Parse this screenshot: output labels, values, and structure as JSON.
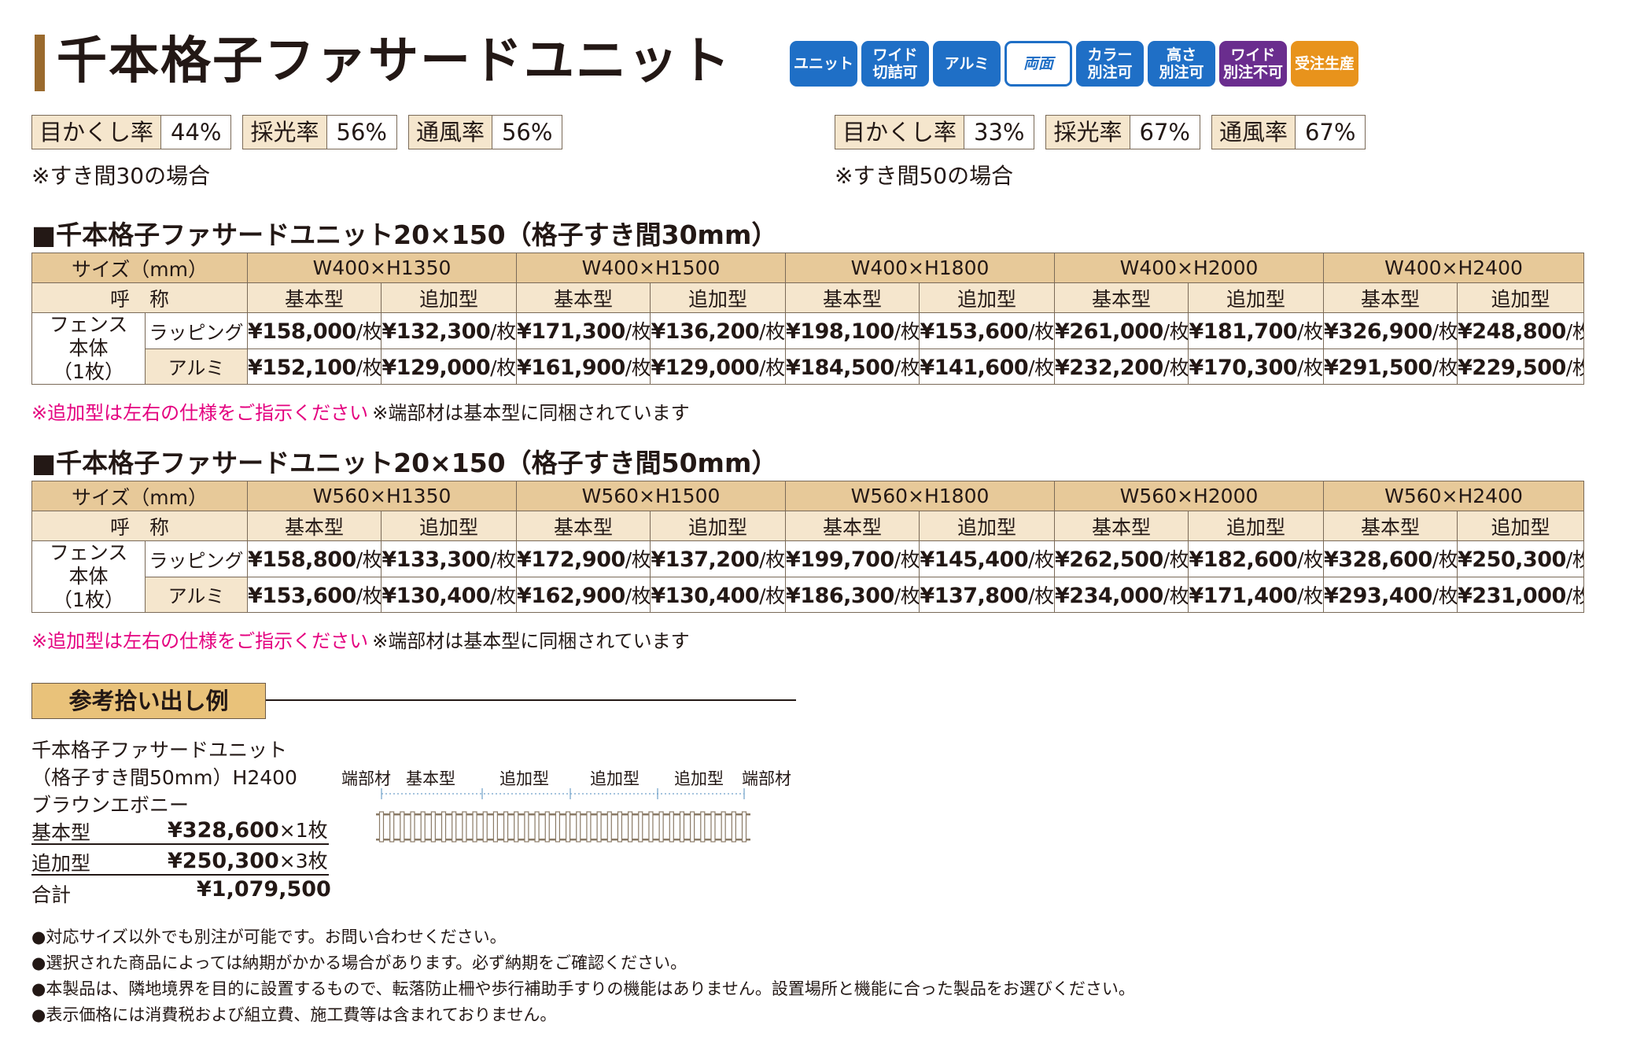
{
  "title": "千本格子ファサードユニット",
  "badges": [
    {
      "label": "ユニット",
      "color": "#1f6fc6"
    },
    {
      "label": "ワイド\n切詰可",
      "color": "#1f6fc6"
    },
    {
      "label": "アルミ",
      "color": "#1f6fc6"
    },
    {
      "label": "両面",
      "color": "#1f6fc6"
    },
    {
      "label": "カラー\n別注可",
      "color": "#1f6fc6"
    },
    {
      "label": "高さ\n別注可",
      "color": "#1f6fc6"
    },
    {
      "label": "ワイド\n別注不可",
      "color": "#6a2d8e"
    },
    {
      "label": "受注生産",
      "color": "#e8931c"
    }
  ],
  "ratios_30": {
    "items": [
      {
        "label": "目かくし率",
        "value": "44%"
      },
      {
        "label": "採光率",
        "value": "56%"
      },
      {
        "label": "通風率",
        "value": "56%"
      }
    ],
    "note": "※すき間30の場合"
  },
  "ratios_50": {
    "items": [
      {
        "label": "目かくし率",
        "value": "33%"
      },
      {
        "label": "採光率",
        "value": "67%"
      },
      {
        "label": "通風率",
        "value": "67%"
      }
    ],
    "note": "※すき間50の場合"
  },
  "tables": [
    {
      "heading": "■千本格子ファサードユニット20×150（格子すき間30mm）",
      "size_label": "サイズ（mm）",
      "name_label": "呼　称",
      "sizes": [
        "W400×H1350",
        "W400×H1500",
        "W400×H1800",
        "W400×H2000",
        "W400×H2400"
      ],
      "types": [
        "基本型",
        "追加型"
      ],
      "row_head": [
        "フェンス",
        "本体",
        "（1枚）"
      ],
      "unit": "/枚",
      "rows": [
        {
          "kind": "ラッピング",
          "prices": [
            "¥158,000",
            "¥132,300",
            "¥171,300",
            "¥136,200",
            "¥198,100",
            "¥153,600",
            "¥261,000",
            "¥181,700",
            "¥326,900",
            "¥248,800"
          ]
        },
        {
          "kind": "アルミ",
          "prices": [
            "¥152,100",
            "¥129,000",
            "¥161,900",
            "¥129,000",
            "¥184,500",
            "¥141,600",
            "¥232,200",
            "¥170,300",
            "¥291,500",
            "¥229,500"
          ]
        }
      ],
      "note_pink": "※追加型は左右の仕様をご指示ください",
      "note_black": "※端部材は基本型に同梱されています"
    },
    {
      "heading": "■千本格子ファサードユニット20×150（格子すき間50mm）",
      "size_label": "サイズ（mm）",
      "name_label": "呼　称",
      "sizes": [
        "W560×H1350",
        "W560×H1500",
        "W560×H1800",
        "W560×H2000",
        "W560×H2400"
      ],
      "types": [
        "基本型",
        "追加型"
      ],
      "row_head": [
        "フェンス",
        "本体",
        "（1枚）"
      ],
      "unit": "/枚",
      "rows": [
        {
          "kind": "ラッピング",
          "prices": [
            "¥158,800",
            "¥133,300",
            "¥172,900",
            "¥137,200",
            "¥199,700",
            "¥145,400",
            "¥262,500",
            "¥182,600",
            "¥328,600",
            "¥250,300"
          ]
        },
        {
          "kind": "アルミ",
          "prices": [
            "¥153,600",
            "¥130,400",
            "¥162,900",
            "¥130,400",
            "¥186,300",
            "¥137,800",
            "¥234,000",
            "¥171,400",
            "¥293,400",
            "¥231,000"
          ]
        }
      ],
      "note_pink": "※追加型は左右の仕様をご指示ください",
      "note_black": "※端部材は基本型に同梱されています"
    }
  ],
  "reference": {
    "label": "参考拾い出し例",
    "lines": [
      "千本格子ファサードユニット",
      "（格子すき間50mm）H2400",
      "ブラウンエボニー"
    ],
    "items": [
      {
        "name": "基本型",
        "price": "¥328,600",
        "qty": "×1枚"
      },
      {
        "name": "追加型",
        "price": "¥250,300",
        "qty": "×3枚"
      }
    ],
    "total_label": "合計",
    "total": "¥1,079,500",
    "diagram_labels": [
      "端部材",
      "基本型",
      "追加型",
      "追加型",
      "追加型",
      "端部材"
    ],
    "fence_color": "#8a7a66"
  },
  "notes": [
    "●対応サイズ以外でも別注が可能です。お問い合わせください。",
    "●選択された商品によっては納期がかかる場合があります。必ず納期をご確認ください。",
    "●本製品は、隣地境界を目的に設置するもので、転落防止柵や歩行補助手すりの機能はありません。設置場所と機能に合った製品をお選びください。",
    "●表示価格には消費税および組立費、施工費等は含まれておりません。"
  ]
}
